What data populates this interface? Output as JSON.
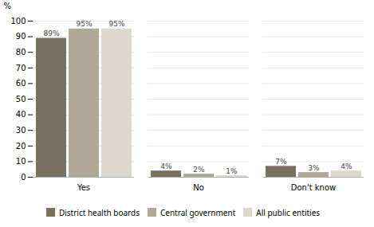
{
  "chart_data": {
    "type": "bar",
    "categories": [
      "Yes",
      "No",
      "Don't know"
    ],
    "series": [
      {
        "name": "District health boards",
        "color": "#7a7060",
        "values": [
          89,
          4,
          7
        ],
        "value_labels": [
          "89%",
          "4%",
          "7%"
        ]
      },
      {
        "name": "Central government",
        "color": "#b0a898",
        "values": [
          95,
          2,
          3
        ],
        "value_labels": [
          "95%",
          "2%",
          "3%"
        ]
      },
      {
        "name": "All public entities",
        "color": "#ddd8ce",
        "values": [
          95,
          1,
          4
        ],
        "value_labels": [
          "95%",
          "1%",
          "4%"
        ]
      }
    ],
    "ylabel": "%",
    "ylim": [
      0,
      100
    ],
    "yticks": [
      0,
      10,
      20,
      30,
      40,
      50,
      60,
      70,
      80,
      90,
      100
    ],
    "grid": true,
    "data_labels": true,
    "legend": "bottom"
  }
}
